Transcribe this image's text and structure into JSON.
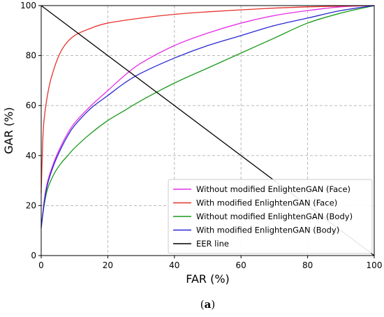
{
  "chart_data": {
    "type": "line",
    "xlabel": "FAR (%)",
    "ylabel": "GAR (%)",
    "xlim": [
      0,
      100
    ],
    "ylim": [
      0,
      100
    ],
    "x_ticks": [
      0,
      20,
      40,
      60,
      80,
      100
    ],
    "y_ticks": [
      0,
      20,
      40,
      60,
      80,
      100
    ],
    "grid": true,
    "grid_style": "dashed",
    "legend_position": "lower-right",
    "series": [
      {
        "name": "Without modified EnlightenGAN (Face)",
        "color": "#e62ee6",
        "x": [
          0,
          1,
          2,
          4,
          6,
          8,
          10,
          15,
          20,
          25,
          30,
          40,
          50,
          60,
          70,
          80,
          90,
          100
        ],
        "y": [
          11,
          23,
          30,
          38,
          44,
          49,
          53,
          60,
          66,
          72,
          77,
          84,
          89,
          93,
          96,
          98,
          99.5,
          100
        ]
      },
      {
        "name": "With modified EnlightenGAN (Face)",
        "color": "#e6332e",
        "x": [
          0,
          0.5,
          1,
          2,
          3,
          5,
          7,
          10,
          15,
          20,
          30,
          40,
          50,
          60,
          70,
          80,
          90,
          100
        ],
        "y": [
          25,
          47,
          56,
          65,
          71,
          79,
          84,
          88,
          91,
          93,
          95,
          96.5,
          97.5,
          98.3,
          99,
          99.5,
          99.8,
          100
        ]
      },
      {
        "name": "Without modified EnlightenGAN (Body)",
        "color": "#1a9a1a",
        "x": [
          0,
          1,
          2,
          4,
          6,
          8,
          10,
          15,
          20,
          25,
          30,
          40,
          50,
          60,
          70,
          80,
          90,
          100
        ],
        "y": [
          12,
          21,
          27,
          33,
          37,
          40,
          43,
          49,
          54,
          58,
          62,
          69,
          75,
          81,
          87,
          93,
          97,
          100
        ]
      },
      {
        "name": "With modified EnlightenGAN (Body)",
        "color": "#2828d2",
        "x": [
          0,
          1,
          2,
          4,
          6,
          8,
          10,
          15,
          20,
          25,
          30,
          40,
          50,
          60,
          70,
          80,
          90,
          100
        ],
        "y": [
          11,
          22,
          29,
          37,
          43,
          48,
          52,
          59,
          64,
          69,
          73,
          79,
          84,
          88,
          92,
          95,
          98,
          100
        ]
      },
      {
        "name": "EER line",
        "color": "#000000",
        "x": [
          0,
          100
        ],
        "y": [
          100,
          0
        ]
      }
    ]
  },
  "caption": {
    "open": "(",
    "letter": "a",
    "close": ")"
  }
}
